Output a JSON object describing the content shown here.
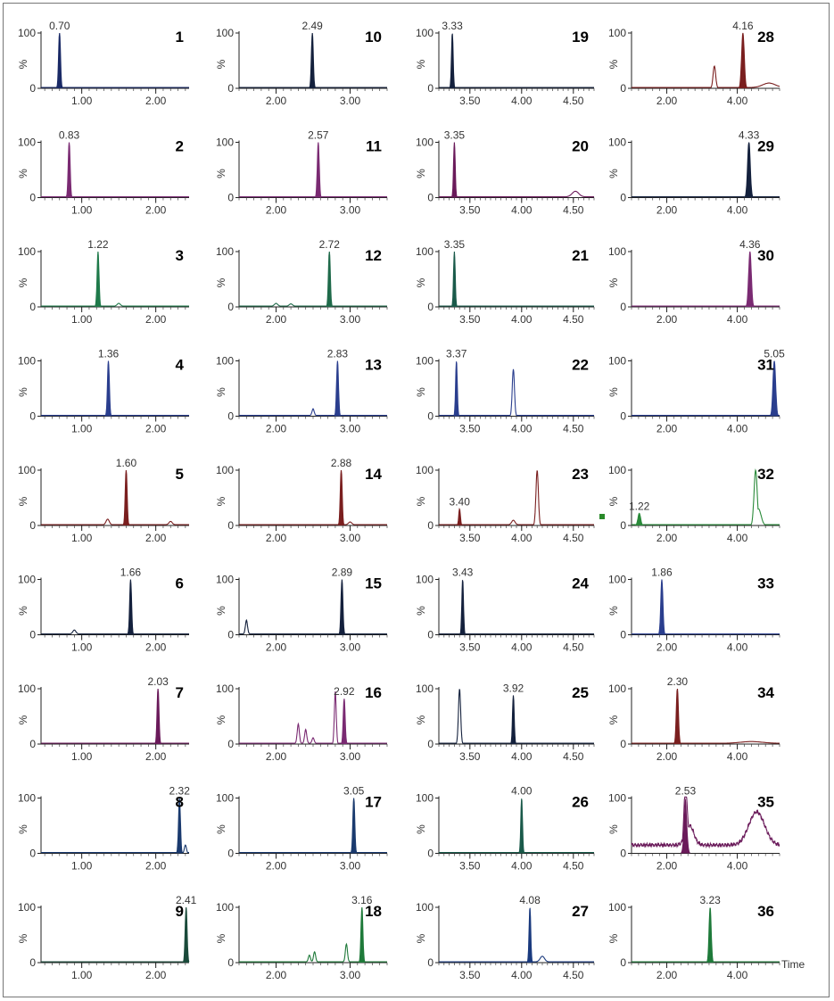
{
  "time_label": "Time",
  "chart_data": [
    {
      "type": "line",
      "num": "1",
      "color": "#1a2a66",
      "xlim": [
        0.45,
        2.45
      ],
      "ticks": [
        "1.00",
        "2.00"
      ],
      "ticksv": [
        1,
        2
      ],
      "label": "0.70",
      "labelx": 0.7,
      "peaks": [
        {
          "x": 0.7,
          "h": 1,
          "w": 0.018
        }
      ],
      "bumps": []
    },
    {
      "type": "line",
      "num": "2",
      "color": "#7a2a72",
      "xlim": [
        0.45,
        2.45
      ],
      "ticks": [
        "1.00",
        "2.00"
      ],
      "ticksv": [
        1,
        2
      ],
      "label": "0.83",
      "labelx": 0.83,
      "peaks": [
        {
          "x": 0.83,
          "h": 1,
          "w": 0.018
        }
      ],
      "bumps": []
    },
    {
      "type": "line",
      "num": "3",
      "color": "#1f7a4a",
      "xlim": [
        0.45,
        2.45
      ],
      "ticks": [
        "1.00",
        "2.00"
      ],
      "ticksv": [
        1,
        2
      ],
      "label": "1.22",
      "labelx": 1.22,
      "peaks": [
        {
          "x": 1.22,
          "h": 1,
          "w": 0.018
        }
      ],
      "bumps": [
        {
          "x": 1.5,
          "h": 0.05,
          "w": 0.03
        }
      ]
    },
    {
      "type": "line",
      "num": "4",
      "color": "#2a3e8e",
      "xlim": [
        0.45,
        2.45
      ],
      "ticks": [
        "1.00",
        "2.00"
      ],
      "ticksv": [
        1,
        2
      ],
      "label": "1.36",
      "labelx": 1.36,
      "peaks": [
        {
          "x": 1.36,
          "h": 1,
          "w": 0.018
        }
      ],
      "bumps": []
    },
    {
      "type": "line",
      "num": "5",
      "color": "#7a1f1f",
      "xlim": [
        0.45,
        2.45
      ],
      "ticks": [
        "1.00",
        "2.00"
      ],
      "ticksv": [
        1,
        2
      ],
      "label": "1.60",
      "labelx": 1.6,
      "peaks": [
        {
          "x": 1.6,
          "h": 1,
          "w": 0.018
        }
      ],
      "bumps": [
        {
          "x": 1.35,
          "h": 0.1,
          "w": 0.03
        },
        {
          "x": 2.2,
          "h": 0.06,
          "w": 0.03
        }
      ]
    },
    {
      "type": "line",
      "num": "6",
      "color": "#14213d",
      "xlim": [
        0.45,
        2.45
      ],
      "ticks": [
        "1.00",
        "2.00"
      ],
      "ticksv": [
        1,
        2
      ],
      "label": "1.66",
      "labelx": 1.66,
      "peaks": [
        {
          "x": 1.66,
          "h": 1,
          "w": 0.018
        }
      ],
      "bumps": [
        {
          "x": 0.9,
          "h": 0.07,
          "w": 0.03
        }
      ]
    },
    {
      "type": "line",
      "num": "7",
      "color": "#6a1a5a",
      "xlim": [
        0.45,
        2.45
      ],
      "ticks": [
        "1.00",
        "2.00"
      ],
      "ticksv": [
        1,
        2
      ],
      "label": "2.03",
      "labelx": 2.03,
      "peaks": [
        {
          "x": 2.03,
          "h": 1,
          "w": 0.018
        }
      ],
      "bumps": []
    },
    {
      "type": "line",
      "num": "8",
      "color": "#1a3a6e",
      "xlim": [
        0.45,
        2.45
      ],
      "ticks": [
        "1.00",
        "2.00"
      ],
      "ticksv": [
        1,
        2
      ],
      "label": "2.32",
      "labelx": 2.32,
      "peaks": [
        {
          "x": 2.32,
          "h": 1,
          "w": 0.018
        },
        {
          "x": 2.4,
          "h": 0.15,
          "w": 0.02
        }
      ],
      "bumps": []
    },
    {
      "type": "line",
      "num": "9",
      "color": "#1a4a3a",
      "xlim": [
        0.45,
        2.45
      ],
      "ticks": [
        "1.00",
        "2.00"
      ],
      "ticksv": [
        1,
        2
      ],
      "label": "2.41",
      "labelx": 2.41,
      "peaks": [
        {
          "x": 2.41,
          "h": 1,
          "w": 0.018
        }
      ],
      "bumps": []
    },
    {
      "type": "line",
      "num": "10",
      "color": "#14213d",
      "xlim": [
        1.5,
        3.5
      ],
      "ticks": [
        "2.00",
        "3.00"
      ],
      "ticksv": [
        2,
        3
      ],
      "label": "2.49",
      "labelx": 2.49,
      "peaks": [
        {
          "x": 2.49,
          "h": 1,
          "w": 0.018
        }
      ],
      "bumps": []
    },
    {
      "type": "line",
      "num": "11",
      "color": "#7a2a72",
      "xlim": [
        1.5,
        3.5
      ],
      "ticks": [
        "2.00",
        "3.00"
      ],
      "ticksv": [
        2,
        3
      ],
      "label": "2.57",
      "labelx": 2.57,
      "peaks": [
        {
          "x": 2.57,
          "h": 1,
          "w": 0.018
        }
      ],
      "bumps": []
    },
    {
      "type": "line",
      "num": "12",
      "color": "#1f6a4a",
      "xlim": [
        1.5,
        3.5
      ],
      "ticks": [
        "2.00",
        "3.00"
      ],
      "ticksv": [
        2,
        3
      ],
      "label": "2.72",
      "labelx": 2.72,
      "peaks": [
        {
          "x": 2.72,
          "h": 1,
          "w": 0.018
        }
      ],
      "bumps": [
        {
          "x": 2.0,
          "h": 0.05,
          "w": 0.03
        },
        {
          "x": 2.2,
          "h": 0.04,
          "w": 0.03
        }
      ]
    },
    {
      "type": "line",
      "num": "13",
      "color": "#2a3e8e",
      "xlim": [
        1.5,
        3.5
      ],
      "ticks": [
        "2.00",
        "3.00"
      ],
      "ticksv": [
        2,
        3
      ],
      "label": "2.83",
      "labelx": 2.83,
      "peaks": [
        {
          "x": 2.83,
          "h": 1,
          "w": 0.018
        }
      ],
      "bumps": [
        {
          "x": 2.5,
          "h": 0.12,
          "w": 0.02
        }
      ]
    },
    {
      "type": "line",
      "num": "14",
      "color": "#7a1f1f",
      "xlim": [
        1.5,
        3.5
      ],
      "ticks": [
        "2.00",
        "3.00"
      ],
      "ticksv": [
        2,
        3
      ],
      "label": "2.88",
      "labelx": 2.88,
      "peaks": [
        {
          "x": 2.88,
          "h": 1,
          "w": 0.018
        }
      ],
      "bumps": [
        {
          "x": 3.0,
          "h": 0.05,
          "w": 0.03
        }
      ]
    },
    {
      "type": "line",
      "num": "15",
      "color": "#14213d",
      "xlim": [
        1.5,
        3.5
      ],
      "ticks": [
        "2.00",
        "3.00"
      ],
      "ticksv": [
        2,
        3
      ],
      "label": "2.89",
      "labelx": 2.89,
      "peaks": [
        {
          "x": 2.89,
          "h": 1,
          "w": 0.018
        }
      ],
      "bumps": [
        {
          "x": 1.6,
          "h": 0.25,
          "w": 0.02
        }
      ]
    },
    {
      "type": "line",
      "num": "16",
      "color": "#7a2a72",
      "xlim": [
        1.5,
        3.5
      ],
      "ticks": [
        "2.00",
        "3.00"
      ],
      "ticksv": [
        2,
        3
      ],
      "label": "2.92",
      "labelx": 2.92,
      "peaks": [
        {
          "x": 2.92,
          "h": 0.82,
          "w": 0.018
        },
        {
          "x": 2.8,
          "h": 0.95,
          "w": 0.018
        }
      ],
      "bumps": [
        {
          "x": 2.3,
          "h": 0.35,
          "w": 0.02
        },
        {
          "x": 2.4,
          "h": 0.25,
          "w": 0.02
        },
        {
          "x": 2.5,
          "h": 0.1,
          "w": 0.02
        }
      ]
    },
    {
      "type": "line",
      "num": "17",
      "color": "#1a3a6e",
      "xlim": [
        1.5,
        3.5
      ],
      "ticks": [
        "2.00",
        "3.00"
      ],
      "ticksv": [
        2,
        3
      ],
      "label": "3.05",
      "labelx": 3.05,
      "peaks": [
        {
          "x": 3.05,
          "h": 1,
          "w": 0.018
        }
      ],
      "bumps": []
    },
    {
      "type": "line",
      "num": "18",
      "color": "#1f7a3a",
      "xlim": [
        1.5,
        3.5
      ],
      "ticks": [
        "2.00",
        "3.00"
      ],
      "ticksv": [
        2,
        3
      ],
      "label": "3.16",
      "labelx": 3.16,
      "peaks": [
        {
          "x": 3.16,
          "h": 1,
          "w": 0.018
        }
      ],
      "bumps": [
        {
          "x": 2.45,
          "h": 0.12,
          "w": 0.02
        },
        {
          "x": 2.52,
          "h": 0.18,
          "w": 0.02
        },
        {
          "x": 2.95,
          "h": 0.32,
          "w": 0.02
        }
      ]
    },
    {
      "type": "line",
      "num": "19",
      "color": "#14213d",
      "xlim": [
        3.2,
        4.7
      ],
      "ticks": [
        "3.50",
        "4.00",
        "4.50"
      ],
      "ticksv": [
        3.5,
        4.0,
        4.5
      ],
      "label": "3.33",
      "labelx": 3.33,
      "peaks": [
        {
          "x": 3.33,
          "h": 1,
          "w": 0.015
        }
      ],
      "bumps": []
    },
    {
      "type": "line",
      "num": "20",
      "color": "#6a1a5a",
      "xlim": [
        3.2,
        4.7
      ],
      "ticks": [
        "3.50",
        "4.00",
        "4.50"
      ],
      "ticksv": [
        3.5,
        4.0,
        4.5
      ],
      "label": "3.35",
      "labelx": 3.35,
      "peaks": [
        {
          "x": 3.35,
          "h": 1,
          "w": 0.015
        }
      ],
      "bumps": [
        {
          "x": 4.52,
          "h": 0.1,
          "w": 0.06
        }
      ]
    },
    {
      "type": "line",
      "num": "21",
      "color": "#1a5a4a",
      "xlim": [
        3.2,
        4.7
      ],
      "ticks": [
        "3.50",
        "4.00",
        "4.50"
      ],
      "ticksv": [
        3.5,
        4.0,
        4.5
      ],
      "label": "3.35",
      "labelx": 3.35,
      "peaks": [
        {
          "x": 3.35,
          "h": 1,
          "w": 0.015
        }
      ],
      "bumps": []
    },
    {
      "type": "line",
      "num": "22",
      "color": "#2a3e8e",
      "xlim": [
        3.2,
        4.7
      ],
      "ticks": [
        "3.50",
        "4.00",
        "4.50"
      ],
      "ticksv": [
        3.5,
        4.0,
        4.5
      ],
      "label": "3.37",
      "labelx": 3.37,
      "peaks": [
        {
          "x": 3.37,
          "h": 1,
          "w": 0.015
        },
        {
          "x": 3.92,
          "h": 0.85,
          "w": 0.02
        }
      ],
      "bumps": []
    },
    {
      "type": "line",
      "num": "23",
      "color": "#7a1f1f",
      "xlim": [
        3.2,
        4.7
      ],
      "ticks": [
        "3.50",
        "4.00",
        "4.50"
      ],
      "ticksv": [
        3.5,
        4.0,
        4.5
      ],
      "label": "3.40",
      "labelx": 3.4,
      "peaks": [
        {
          "x": 3.4,
          "h": 0.3,
          "w": 0.015
        },
        {
          "x": 4.15,
          "h": 1,
          "w": 0.022
        }
      ],
      "bumps": [
        {
          "x": 3.92,
          "h": 0.08,
          "w": 0.03
        }
      ]
    },
    {
      "type": "line",
      "num": "24",
      "color": "#14213d",
      "xlim": [
        3.2,
        4.7
      ],
      "ticks": [
        "3.50",
        "4.00",
        "4.50"
      ],
      "ticksv": [
        3.5,
        4.0,
        4.5
      ],
      "label": "3.43",
      "labelx": 3.43,
      "peaks": [
        {
          "x": 3.43,
          "h": 1,
          "w": 0.015
        }
      ],
      "bumps": []
    },
    {
      "type": "line",
      "num": "25",
      "color": "#14213d",
      "xlim": [
        3.2,
        4.7
      ],
      "ticks": [
        "3.50",
        "4.00",
        "4.50"
      ],
      "ticksv": [
        3.5,
        4.0,
        4.5
      ],
      "label": "3.92",
      "labelx": 3.92,
      "peaks": [
        {
          "x": 3.92,
          "h": 0.88,
          "w": 0.015
        },
        {
          "x": 3.4,
          "h": 1,
          "w": 0.02
        }
      ],
      "bumps": []
    },
    {
      "type": "line",
      "num": "26",
      "color": "#1a5a4a",
      "xlim": [
        3.2,
        4.7
      ],
      "ticks": [
        "3.50",
        "4.00",
        "4.50"
      ],
      "ticksv": [
        3.5,
        4.0,
        4.5
      ],
      "label": "4.00",
      "labelx": 4.0,
      "peaks": [
        {
          "x": 4.0,
          "h": 1,
          "w": 0.015
        }
      ],
      "bumps": []
    },
    {
      "type": "line",
      "num": "27",
      "color": "#1a3a7e",
      "xlim": [
        3.2,
        4.7
      ],
      "ticks": [
        "3.50",
        "4.00",
        "4.50"
      ],
      "ticksv": [
        3.5,
        4.0,
        4.5
      ],
      "label": "4.08",
      "labelx": 4.08,
      "peaks": [
        {
          "x": 4.08,
          "h": 1,
          "w": 0.015
        }
      ],
      "bumps": [
        {
          "x": 4.2,
          "h": 0.1,
          "w": 0.04
        }
      ]
    },
    {
      "type": "line",
      "num": "28",
      "color": "#7a1f1f",
      "xlim": [
        1.0,
        5.2
      ],
      "ticks": [
        "2.00",
        "4.00"
      ],
      "ticksv": [
        2,
        4
      ],
      "label": "4.16",
      "labelx": 4.16,
      "peaks": [
        {
          "x": 4.16,
          "h": 1,
          "w": 0.025
        },
        {
          "x": 3.35,
          "h": 0.4,
          "w": 0.025
        }
      ],
      "bumps": [
        {
          "x": 4.9,
          "h": 0.08,
          "w": 0.12
        }
      ]
    },
    {
      "type": "line",
      "num": "29",
      "color": "#14213d",
      "xlim": [
        1.0,
        5.2
      ],
      "ticks": [
        "2.00",
        "4.00"
      ],
      "ticksv": [
        2,
        4
      ],
      "label": "4.33",
      "labelx": 4.33,
      "peaks": [
        {
          "x": 4.33,
          "h": 1,
          "w": 0.025
        }
      ],
      "bumps": []
    },
    {
      "type": "line",
      "num": "30",
      "color": "#7a2a72",
      "xlim": [
        1.0,
        5.2
      ],
      "ticks": [
        "2.00",
        "4.00"
      ],
      "ticksv": [
        2,
        4
      ],
      "label": "4.36",
      "labelx": 4.36,
      "peaks": [
        {
          "x": 4.36,
          "h": 1,
          "w": 0.025
        }
      ],
      "bumps": []
    },
    {
      "type": "line",
      "num": "31",
      "color": "#2a3e8e",
      "xlim": [
        1.0,
        5.2
      ],
      "ticks": [
        "2.00",
        "4.00"
      ],
      "ticksv": [
        2,
        4
      ],
      "label": "5.05",
      "labelx": 5.05,
      "peaks": [
        {
          "x": 5.05,
          "h": 1,
          "w": 0.025
        }
      ],
      "bumps": []
    },
    {
      "type": "line",
      "num": "32",
      "color": "#2a8a3a",
      "xlim": [
        1.0,
        5.2
      ],
      "ticks": [
        "2.00",
        "4.00"
      ],
      "ticksv": [
        2,
        4
      ],
      "label": "1.22",
      "labelx": 1.22,
      "peaks": [
        {
          "x": 1.22,
          "h": 0.22,
          "w": 0.025
        },
        {
          "x": 4.52,
          "h": 1,
          "w": 0.03
        },
        {
          "x": 4.6,
          "h": 0.3,
          "w": 0.05
        }
      ],
      "bumps": []
    },
    {
      "type": "line",
      "num": "33",
      "color": "#2a3e8e",
      "xlim": [
        1.0,
        5.2
      ],
      "ticks": [
        "2.00",
        "4.00"
      ],
      "ticksv": [
        2,
        4
      ],
      "label": "1.86",
      "labelx": 1.86,
      "peaks": [
        {
          "x": 1.86,
          "h": 1,
          "w": 0.02
        }
      ],
      "bumps": []
    },
    {
      "type": "line",
      "num": "34",
      "color": "#7a1f1f",
      "xlim": [
        1.0,
        5.2
      ],
      "ticks": [
        "2.00",
        "4.00"
      ],
      "ticksv": [
        2,
        4
      ],
      "label": "2.30",
      "labelx": 2.3,
      "peaks": [
        {
          "x": 2.3,
          "h": 1,
          "w": 0.02
        }
      ],
      "bumps": [
        {
          "x": 4.4,
          "h": 0.03,
          "w": 0.2
        }
      ]
    },
    {
      "type": "line",
      "num": "35",
      "color": "#6a1a5a",
      "xlim": [
        1.0,
        5.2
      ],
      "ticks": [
        "2.00",
        "4.00"
      ],
      "ticksv": [
        2,
        4
      ],
      "label": "2.53",
      "labelx": 2.53,
      "peaks": [
        {
          "x": 2.53,
          "h": 1,
          "w": 0.03
        }
      ],
      "bumps": [
        {
          "x": 2.65,
          "h": 0.35,
          "w": 0.08
        },
        {
          "x": 4.55,
          "h": 0.6,
          "w": 0.15
        }
      ],
      "base": 0.15
    },
    {
      "type": "line",
      "num": "36",
      "color": "#1f7a3a",
      "xlim": [
        1.0,
        5.2
      ],
      "ticks": [
        "2.00",
        "4.00"
      ],
      "ticksv": [
        2,
        4
      ],
      "label": "3.23",
      "labelx": 3.23,
      "peaks": [
        {
          "x": 3.23,
          "h": 1,
          "w": 0.02
        }
      ],
      "bumps": []
    }
  ]
}
